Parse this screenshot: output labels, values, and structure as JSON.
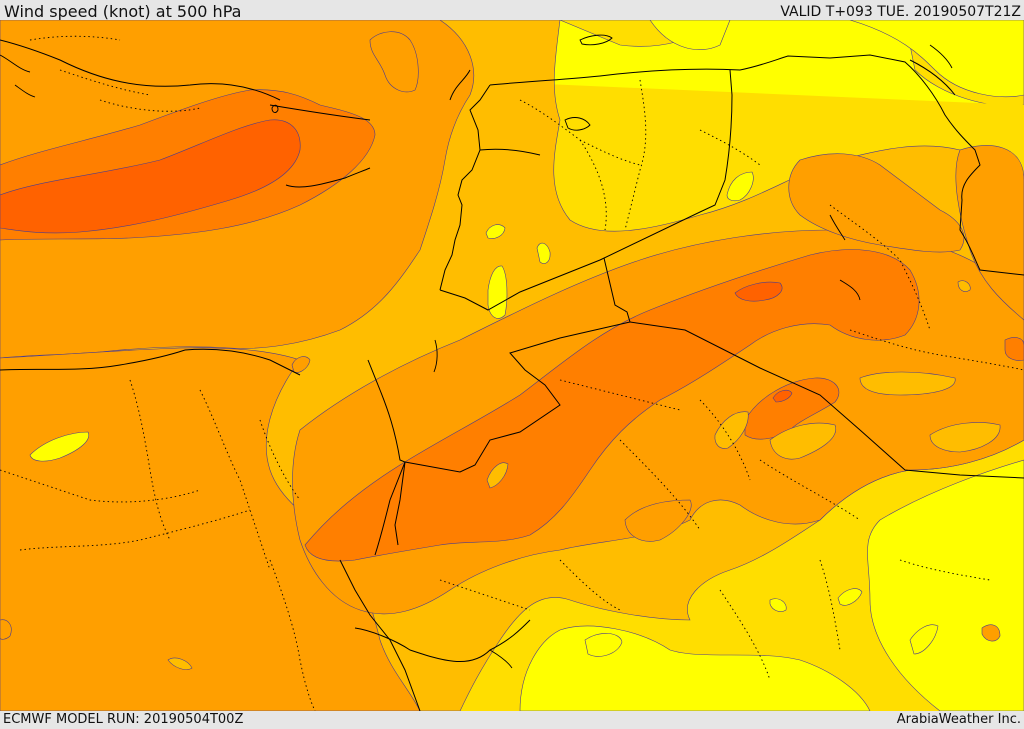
{
  "header": {
    "title": "Wind speed (knot) at 500 hPa",
    "valid": "VALID T+093 TUE. 20190507T21Z"
  },
  "footer": {
    "model_run": "ECMWF MODEL RUN: 20190504T00Z",
    "credit": "ArabiaWeather Inc."
  },
  "map": {
    "variable": "Wind speed at 500 hPa",
    "unit": "knot",
    "shading_colors": [
      "#ffff00",
      "#ffde00",
      "#ffbd00",
      "#ff9f00",
      "#ff7f00",
      "#ff6200"
    ],
    "contour_color": "#4d3d8c",
    "border_color": "#000000"
  }
}
